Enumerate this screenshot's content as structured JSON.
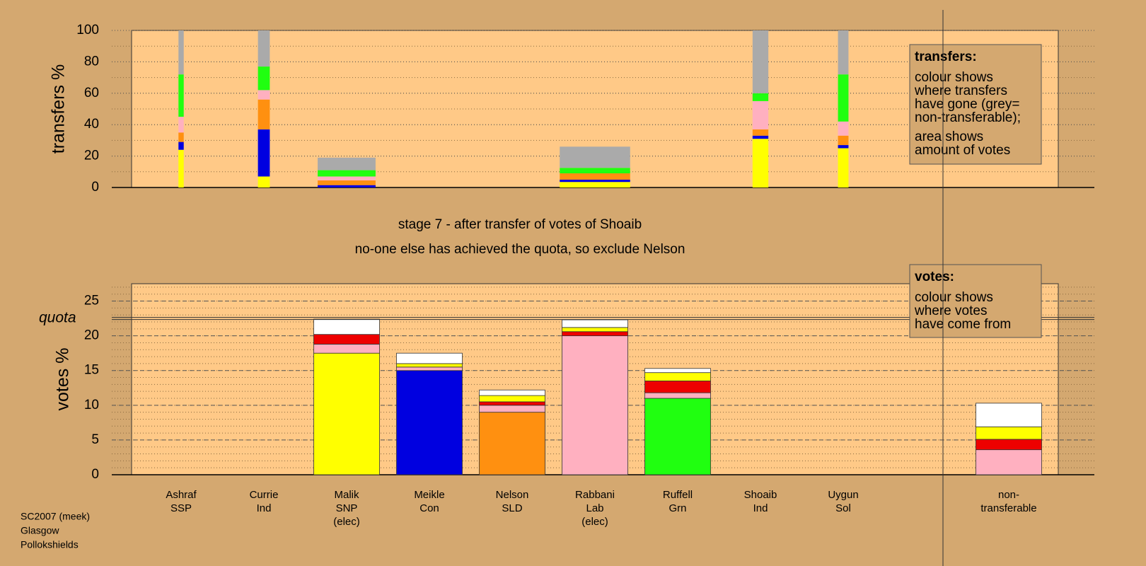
{
  "stage": "stage 7 - after transfer of votes of Shoaib",
  "note": "no-one else has achieved the quota, so exclude Nelson",
  "footer": [
    "SC2007 (meek)",
    "Glasgow",
    "Pollokshields"
  ],
  "chart_data": [
    {
      "type": "bar",
      "stacked": true,
      "ylabel": "transfers %",
      "ylim": [
        0,
        100
      ],
      "yticks": [
        0,
        20,
        40,
        60,
        80,
        100
      ],
      "minor_grid_step": 10,
      "grid": true,
      "bar_widths": [
        0.08,
        0.18,
        0.88,
        null,
        null,
        1.07,
        null,
        0.24,
        0.16
      ],
      "series": [
        {
          "color": "#ffff00",
          "values": [
            24,
            7,
            0,
            null,
            null,
            3.5,
            null,
            31,
            25
          ]
        },
        {
          "color": "#0000e0",
          "values": [
            5,
            30,
            1.5,
            null,
            null,
            1.5,
            null,
            2,
            2
          ]
        },
        {
          "color": "#ff9010",
          "values": [
            6,
            19,
            3,
            null,
            null,
            4,
            null,
            4,
            6
          ]
        },
        {
          "color": "#ffb0c0",
          "values": [
            10,
            6,
            2.5,
            null,
            null,
            0,
            null,
            18,
            9
          ]
        },
        {
          "color": "#20ff10",
          "values": [
            27,
            15,
            4,
            null,
            null,
            3.5,
            null,
            5,
            30
          ]
        },
        {
          "color": "#aaaaaa",
          "values": [
            28,
            23,
            8,
            null,
            null,
            13.5,
            null,
            40,
            28
          ]
        }
      ],
      "legend": {
        "title": "transfers:",
        "paragraphs": [
          [
            "colour shows",
            "where transfers",
            "have gone (grey=",
            "non-transferable);"
          ],
          [
            "area shows",
            "amount of votes"
          ]
        ]
      }
    },
    {
      "type": "bar",
      "stacked": true,
      "ylabel": "votes %",
      "ylim": [
        0,
        27.5
      ],
      "yticks": [
        0,
        5,
        10,
        15,
        20,
        25
      ],
      "minor_grid_step": 1,
      "grid": true,
      "quota": {
        "value": 22.5,
        "label": "quota"
      },
      "categories": [
        [
          "Ashraf",
          "SSP"
        ],
        [
          "Currie",
          "Ind"
        ],
        [
          "Malik",
          "SNP",
          "(elec)"
        ],
        [
          "Meikle",
          "Con"
        ],
        [
          "Nelson",
          "SLD"
        ],
        [
          "Rabbani",
          "Lab",
          "(elec)"
        ],
        [
          "Ruffell",
          "Grn"
        ],
        [
          "Shoaib",
          "Ind"
        ],
        [
          "Uygun",
          "Sol"
        ],
        [
          "non-",
          "transferable"
        ]
      ],
      "series": [
        {
          "colors": [
            "#ffffff",
            "#ffffff",
            "#ffff00",
            "#0000e0",
            "#ff9010",
            "#ffb0c0",
            "#20ff10",
            "#ffffff",
            "#ffffff",
            "#ffffff"
          ],
          "values": [
            0,
            0,
            17.5,
            15,
            9,
            20,
            11,
            0,
            0,
            0
          ]
        },
        {
          "color": "#ffb0c0",
          "values": [
            0,
            0,
            1.3,
            0.5,
            1,
            0,
            0.8,
            0,
            0,
            3.6
          ]
        },
        {
          "color": "#ee0000",
          "values": [
            0,
            0,
            1.4,
            0,
            0.5,
            0.6,
            1.7,
            0,
            0,
            1.5
          ]
        },
        {
          "color": "#ffff00",
          "values": [
            0,
            0,
            0,
            0.5,
            0.9,
            0.6,
            1.2,
            0,
            0,
            1.8
          ]
        },
        {
          "color": "#ffffff",
          "values": [
            0,
            0,
            2.2,
            1.5,
            0.8,
            1.1,
            0.6,
            0,
            0,
            3.4
          ]
        }
      ],
      "legend": {
        "title": "votes:",
        "paragraphs": [
          [
            "colour shows",
            "where votes",
            "have come from"
          ]
        ]
      }
    }
  ]
}
